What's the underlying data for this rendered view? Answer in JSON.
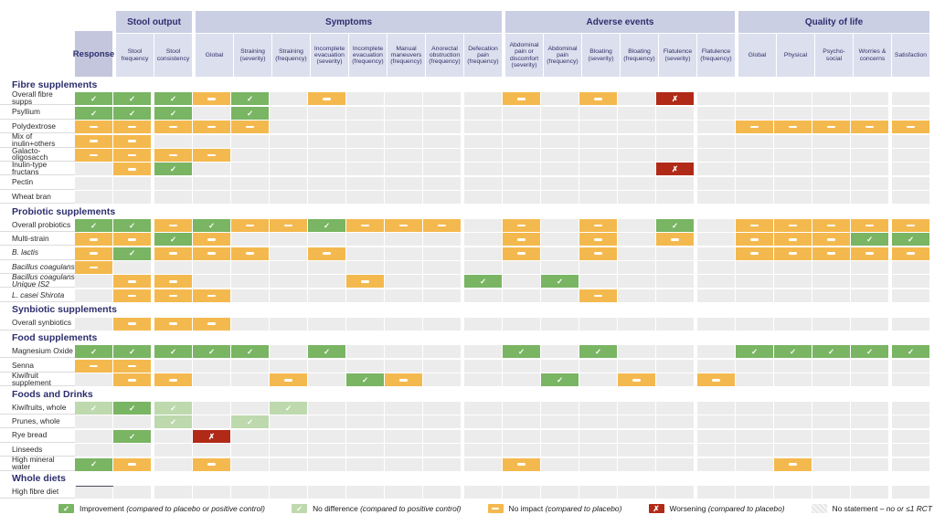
{
  "palette": {
    "improvement": "#79b563",
    "no_difference": "#bed9ae",
    "no_impact": "#f4b94e",
    "worsening": "#b02a17",
    "no_statement": "#ececec",
    "header_group_bg": "#cbcfe4",
    "header_sub_bg": "#dcdfee",
    "response_bg": "#c3c6dd",
    "heading_text": "#2c2e6d"
  },
  "chart_data": {
    "type": "heatmap",
    "title": "",
    "value_codes": {
      "I": "Improvement",
      "D": "No difference",
      "N": "No impact",
      "W": "Worsening",
      "": "No statement"
    },
    "response_column": "Response",
    "column_groups": [
      {
        "label": "Stool output",
        "columns": [
          "Stool frequency",
          "Stool consistency"
        ]
      },
      {
        "label": "Symptoms",
        "columns": [
          "Global",
          "Straining (severity)",
          "Straining (frequency)",
          "Incomplete evacuation (severity)",
          "Incomplete evacuation (frequency)",
          "Manual maneuvers (frequency)",
          "Anorectal obstruction (frequency)",
          "Defecation pain (frequency)"
        ]
      },
      {
        "label": "Adverse events",
        "columns": [
          "Abdominal pain or discomfort (severity)",
          "Abdominal pain (frequency)",
          "Bloating (severity)",
          "Bloating (frequency)",
          "Flatulence (severity)",
          "Flatulence (frequency)"
        ]
      },
      {
        "label": "Quality of life",
        "columns": [
          "Global",
          "Physical",
          "Psycho-social",
          "Worries & concerns",
          "Satisfaction"
        ]
      }
    ],
    "sections": [
      {
        "title": "Fibre supplements",
        "rows": [
          {
            "label": "Overall fibre supps",
            "italic": false,
            "cells": [
              "I",
              "I",
              "I",
              "N",
              "I",
              "",
              "N",
              "",
              "",
              "",
              "",
              "N",
              "",
              "N",
              "",
              "W",
              "",
              "",
              "",
              "",
              "",
              ""
            ]
          },
          {
            "label": "Psyllium",
            "italic": false,
            "cells": [
              "I",
              "I",
              "I",
              "",
              "I",
              "",
              "",
              "",
              "",
              "",
              "",
              "",
              "",
              "",
              "",
              "",
              "",
              "",
              "",
              "",
              "",
              ""
            ]
          },
          {
            "label": "Polydextrose",
            "italic": false,
            "cells": [
              "N",
              "N",
              "N",
              "N",
              "N",
              "",
              "",
              "",
              "",
              "",
              "",
              "",
              "",
              "",
              "",
              "",
              "",
              "N",
              "N",
              "N",
              "N",
              "N"
            ]
          },
          {
            "label": "Mix of inulin+others",
            "italic": false,
            "cells": [
              "N",
              "N",
              "",
              "",
              "",
              "",
              "",
              "",
              "",
              "",
              "",
              "",
              "",
              "",
              "",
              "",
              "",
              "",
              "",
              "",
              "",
              ""
            ]
          },
          {
            "label": "Galacto-oligosacch",
            "italic": false,
            "cells": [
              "N",
              "N",
              "N",
              "N",
              "",
              "",
              "",
              "",
              "",
              "",
              "",
              "",
              "",
              "",
              "",
              "",
              "",
              "",
              "",
              "",
              "",
              ""
            ]
          },
          {
            "label": "Inulin-type fructans",
            "italic": false,
            "cells": [
              "",
              "N",
              "I",
              "",
              "",
              "",
              "",
              "",
              "",
              "",
              "",
              "",
              "",
              "",
              "",
              "W",
              "",
              "",
              "",
              "",
              "",
              ""
            ]
          },
          {
            "label": "Pectin",
            "italic": false,
            "cells": [
              "",
              "",
              "",
              "",
              "",
              "",
              "",
              "",
              "",
              "",
              "",
              "",
              "",
              "",
              "",
              "",
              "",
              "",
              "",
              "",
              "",
              ""
            ]
          },
          {
            "label": "Wheat bran",
            "italic": false,
            "cells": [
              "",
              "",
              "",
              "",
              "",
              "",
              "",
              "",
              "",
              "",
              "",
              "",
              "",
              "",
              "",
              "",
              "",
              "",
              "",
              "",
              "",
              ""
            ]
          }
        ]
      },
      {
        "title": "Probiotic supplements",
        "rows": [
          {
            "label": "Overall probiotics",
            "italic": false,
            "cells": [
              "I",
              "I",
              "N",
              "I",
              "N",
              "N",
              "I",
              "N",
              "N",
              "N",
              "",
              "N",
              "",
              "N",
              "",
              "I",
              "",
              "N",
              "N",
              "N",
              "N",
              "N"
            ]
          },
          {
            "label": "Multi-strain",
            "italic": false,
            "cells": [
              "N",
              "N",
              "I",
              "N",
              "",
              "",
              "",
              "",
              "",
              "",
              "",
              "N",
              "",
              "N",
              "",
              "N",
              "",
              "N",
              "N",
              "N",
              "I",
              "I"
            ]
          },
          {
            "label": "B. lactis",
            "italic": true,
            "cells": [
              "N",
              "I",
              "N",
              "N",
              "N",
              "",
              "N",
              "",
              "",
              "",
              "",
              "N",
              "",
              "N",
              "",
              "",
              "",
              "N",
              "N",
              "N",
              "N",
              "N"
            ]
          },
          {
            "label": "Bacillus coagulans",
            "italic": true,
            "cells": [
              "N",
              "",
              "",
              "",
              "",
              "",
              "",
              "",
              "",
              "",
              "",
              "",
              "",
              "",
              "",
              "",
              "",
              "",
              "",
              "",
              "",
              ""
            ]
          },
          {
            "label": "Bacillus coagulans Unique IS2",
            "italic": true,
            "cells": [
              "",
              "N",
              "N",
              "",
              "",
              "",
              "",
              "N",
              "",
              "",
              "I",
              "",
              "I",
              "",
              "",
              "",
              "",
              "",
              "",
              "",
              "",
              ""
            ]
          },
          {
            "label": "L. casei Shirota",
            "italic": true,
            "cells": [
              "",
              "N",
              "N",
              "N",
              "",
              "",
              "",
              "",
              "",
              "",
              "",
              "",
              "",
              "N",
              "",
              "",
              "",
              "",
              "",
              "",
              "",
              ""
            ]
          }
        ]
      },
      {
        "title": "Synbiotic supplements",
        "rows": [
          {
            "label": "Overall synbiotics",
            "italic": false,
            "cells": [
              "",
              "N",
              "N",
              "N",
              "",
              "",
              "",
              "",
              "",
              "",
              "",
              "",
              "",
              "",
              "",
              "",
              "",
              "",
              "",
              "",
              "",
              ""
            ]
          }
        ]
      },
      {
        "title": "Food supplements",
        "rows": [
          {
            "label": "Magnesium Oxide",
            "italic": false,
            "cells": [
              "I",
              "I",
              "I",
              "I",
              "I",
              "",
              "I",
              "",
              "",
              "",
              "",
              "I",
              "",
              "I",
              "",
              "",
              "",
              "I",
              "I",
              "I",
              "I",
              "I"
            ]
          },
          {
            "label": "Senna",
            "italic": false,
            "cells": [
              "N",
              "N",
              "",
              "",
              "",
              "",
              "",
              "",
              "",
              "",
              "",
              "",
              "",
              "",
              "",
              "",
              "",
              "",
              "",
              "",
              "",
              ""
            ]
          },
          {
            "label": "Kiwifruit supplement",
            "italic": false,
            "cells": [
              "",
              "N",
              "N",
              "",
              "",
              "N",
              "",
              "I",
              "N",
              "",
              "",
              "",
              "I",
              "",
              "N",
              "",
              "N",
              "",
              "",
              "",
              "",
              ""
            ]
          }
        ]
      },
      {
        "title": "Foods and Drinks",
        "rows": [
          {
            "label": "Kiwifruits, whole",
            "italic": false,
            "cells": [
              "D",
              "I",
              "D",
              "",
              "",
              "D",
              "",
              "",
              "",
              "",
              "",
              "",
              "",
              "",
              "",
              "",
              "",
              "",
              "",
              "",
              "",
              ""
            ]
          },
          {
            "label": "Prunes, whole",
            "italic": false,
            "cells": [
              "",
              "",
              "D",
              "",
              "D",
              "",
              "",
              "",
              "",
              "",
              "",
              "",
              "",
              "",
              "",
              "",
              "",
              "",
              "",
              "",
              "",
              ""
            ]
          },
          {
            "label": "Rye bread",
            "italic": false,
            "cells": [
              "",
              "I",
              "",
              "W",
              "",
              "",
              "",
              "",
              "",
              "",
              "",
              "",
              "",
              "",
              "",
              "",
              "",
              "",
              "",
              "",
              "",
              ""
            ]
          },
          {
            "label": "Linseeds",
            "italic": false,
            "cells": [
              "",
              "",
              "",
              "",
              "",
              "",
              "",
              "",
              "",
              "",
              "",
              "",
              "",
              "",
              "",
              "",
              "",
              "",
              "",
              "",
              "",
              ""
            ]
          },
          {
            "label": "High mineral water",
            "italic": false,
            "cells": [
              "I",
              "N",
              "",
              "N",
              "",
              "",
              "",
              "",
              "",
              "",
              "",
              "N",
              "",
              "",
              "",
              "",
              "",
              "",
              "N",
              "",
              "",
              ""
            ]
          }
        ]
      },
      {
        "title": "Whole diets",
        "response_underline": true,
        "rows": [
          {
            "label": "High fibre diet",
            "italic": false,
            "cells": [
              "",
              "",
              "",
              "",
              "",
              "",
              "",
              "",
              "",
              "",
              "",
              "",
              "",
              "",
              "",
              "",
              "",
              "",
              "",
              "",
              "",
              ""
            ]
          }
        ]
      }
    ]
  },
  "legend": [
    {
      "code": "I",
      "label": "Improvement",
      "note": "(compared to placebo or positive control)"
    },
    {
      "code": "D",
      "label": "No difference",
      "note": "(compared to positive control)"
    },
    {
      "code": "N",
      "label": "No impact",
      "note": "(compared to placebo)"
    },
    {
      "code": "W",
      "label": "Worsening",
      "note": "(compared to placebo)"
    },
    {
      "code": "",
      "label": "No statement",
      "note": "– no or ≤1 RCT"
    }
  ]
}
